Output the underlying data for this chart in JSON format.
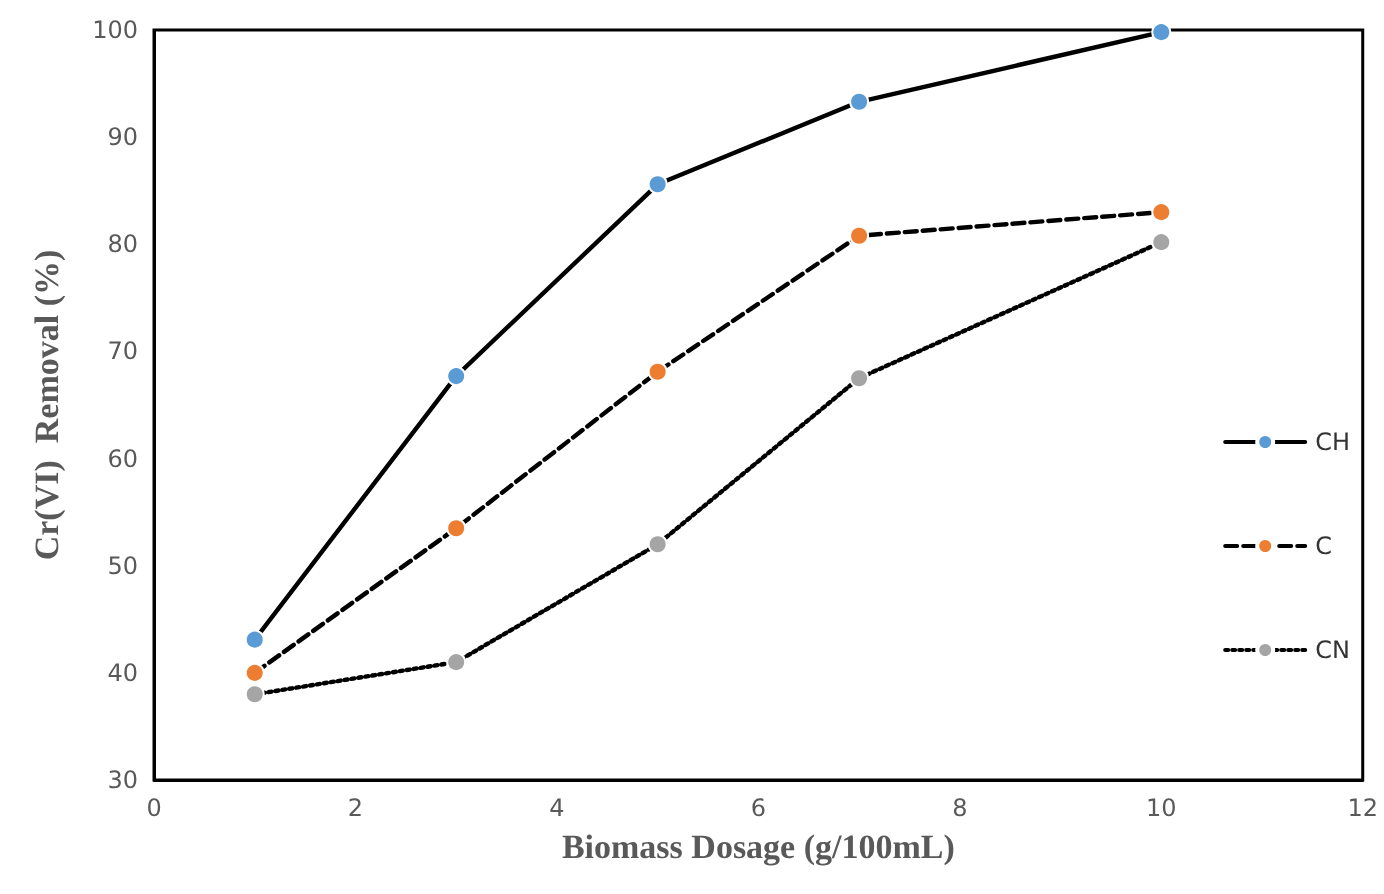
{
  "chart_data": {
    "type": "line",
    "xlabel": "Biomass Dosage (g/100mL)",
    "ylabel": "Cr(VI)  Removal (%)",
    "x": [
      1,
      3,
      5,
      7,
      10
    ],
    "series": [
      {
        "name": "CH",
        "color": "#5b9bd5",
        "line_style": "solid",
        "values": [
          43.1,
          67.7,
          85.6,
          93.3,
          99.8
        ]
      },
      {
        "name": "C",
        "color": "#ed7d31",
        "line_style": "dashed",
        "values": [
          40,
          53.5,
          68.1,
          80.8,
          83
        ]
      },
      {
        "name": "CN",
        "color": "#a5a5a5",
        "line_style": "dotted",
        "values": [
          38,
          41,
          52,
          67.5,
          80.2
        ]
      }
    ],
    "xlim": [
      0,
      12
    ],
    "xticks": [
      0,
      2,
      4,
      6,
      8,
      10,
      12
    ],
    "ylim": [
      30,
      100
    ],
    "yticks": [
      30,
      40,
      50,
      60,
      70,
      80,
      90,
      100
    ],
    "grid": false,
    "legend": "right",
    "marker": "circle"
  }
}
